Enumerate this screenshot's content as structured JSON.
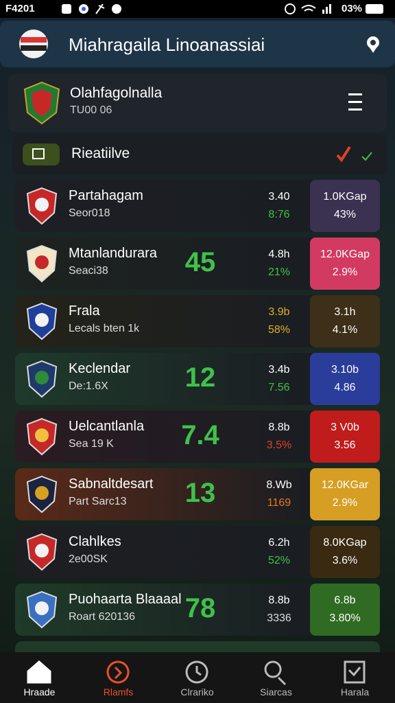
{
  "status_bar": {
    "time": "F4201",
    "battery": "03%"
  },
  "header": {
    "title": "Miahragaila Linoanassiai"
  },
  "club": {
    "name": "Olahfagolnalla",
    "sub": "TU00 06"
  },
  "section": {
    "title": "Rieatiilve"
  },
  "rows": [
    {
      "name": "Partahagam",
      "sub": "Seor018",
      "score": null,
      "stat_top": "3.40",
      "stat_bottom": "8:76",
      "stat_color": "#3ec24a",
      "box_top": "1.0KGap",
      "box_bottom": "43%",
      "box_color": "#3b3150",
      "tint": "#1d1f24"
    },
    {
      "name": "Mtanlandurara",
      "sub": "Seaci38",
      "score": "45",
      "stat_top": "4.8h",
      "stat_bottom": "21%",
      "stat_color": "#3ec24a",
      "box_top": "12.0KGap",
      "box_bottom": "2.9%",
      "box_color": "#d23a62",
      "tint": "#1d2320"
    },
    {
      "name": "Frala",
      "sub": "Lecals bten 1k",
      "score": null,
      "stat_top": "3.9b",
      "stat_bottom": "58%",
      "stat_color": "#e0b020",
      "box_top": "3.1h",
      "box_bottom": "4.1%",
      "box_color": "#3d2f18",
      "tint": "#24231a"
    },
    {
      "name": "Keclendar",
      "sub": "De:1.6X",
      "score": "12",
      "stat_top": "3.4b",
      "stat_bottom": "7.56",
      "stat_color": "#3ec24a",
      "box_top": "3.10b",
      "box_bottom": "4.86",
      "box_color": "#2a3d9a",
      "tint": "#1f3a2c"
    },
    {
      "name": "Uelcantlanla",
      "sub": "Sea 19 K",
      "score": "7.4",
      "stat_top": "8.8b",
      "stat_bottom": "3.5%",
      "stat_color": "#e0402a",
      "box_top": "3 V0b",
      "box_bottom": "3.56",
      "box_color": "#c01c1c",
      "tint": "#2a1c22"
    },
    {
      "name": "Sabnaltdesart",
      "sub": "Part Sarc13",
      "score": "13",
      "stat_top": "8.Wb",
      "stat_bottom": "1169",
      "stat_color": "#e07a20",
      "box_top": "12.0KGar",
      "box_bottom": "2.9%",
      "box_color": "#d69e22",
      "tint": "#5a2a18"
    },
    {
      "name": "Clahlkes",
      "sub": "2e00SK",
      "score": null,
      "stat_top": "6.2h",
      "stat_bottom": "52%",
      "stat_color": "#3ec24a",
      "box_top": "8.0KGap",
      "box_bottom": "3.6%",
      "box_color": "#3a2a12",
      "tint": "#1d1e22"
    },
    {
      "name": "Puohaarta Blaaaal",
      "sub": "Roart 620136",
      "score": "78",
      "stat_top": "8.8b",
      "stat_bottom": "3336",
      "stat_color": "#dddddd",
      "box_top": "6.8b",
      "box_bottom": "3.80%",
      "box_color": "#2f6b22",
      "tint": "#1f3a28"
    }
  ],
  "nav": [
    {
      "label": "Hraade",
      "active": false
    },
    {
      "label": "Rlamfs",
      "active": true
    },
    {
      "label": "Clrariko",
      "active": false
    },
    {
      "label": "Siarcas",
      "active": false
    },
    {
      "label": "Harala",
      "active": false
    }
  ]
}
